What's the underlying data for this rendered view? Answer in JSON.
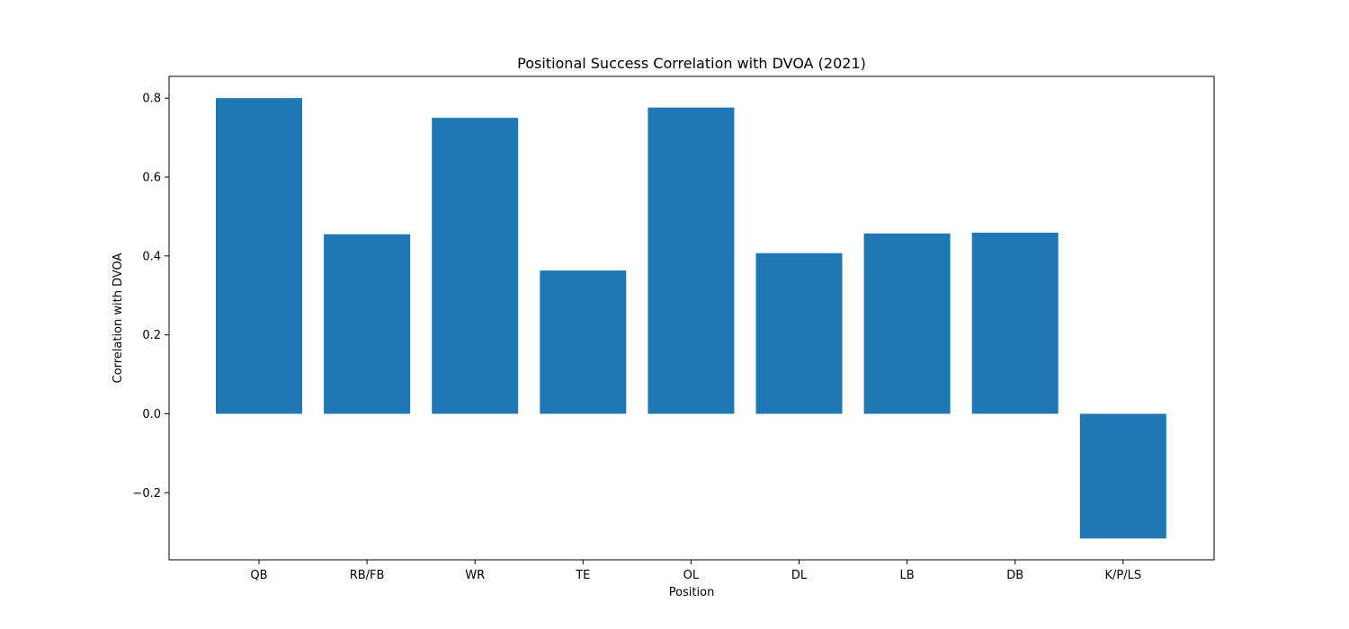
{
  "colors": {
    "bar": "#1f77b4",
    "axis": "#000000",
    "background": "#ffffff"
  },
  "chart_data": {
    "type": "bar",
    "title": "Positional Success Correlation with DVOA (2021)",
    "xlabel": "Position",
    "ylabel": "Correlation with DVOA",
    "categories": [
      "QB",
      "RB/FB",
      "WR",
      "TE",
      "OL",
      "DL",
      "LB",
      "DB",
      "K/P/LS"
    ],
    "values": [
      0.8,
      0.455,
      0.75,
      0.363,
      0.776,
      0.407,
      0.457,
      0.459,
      -0.316
    ],
    "ylim": [
      -0.37,
      0.855
    ],
    "yticks": [
      -0.2,
      0.0,
      0.2,
      0.4,
      0.6,
      0.8
    ],
    "ytick_labels": [
      "−0.2",
      "0.0",
      "0.2",
      "0.4",
      "0.6",
      "0.8"
    ],
    "grid": false,
    "legend": "none"
  }
}
